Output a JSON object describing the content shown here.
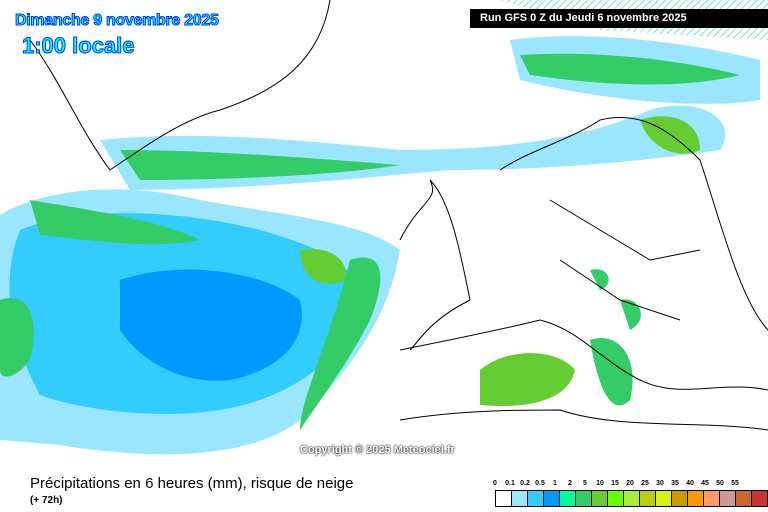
{
  "header": {
    "date": "Dimanche 9 novembre 2025",
    "time": "1:00 locale",
    "run": "Run GFS 0 Z du Jeudi 6 novembre 2025"
  },
  "copyright": "Copyright © 2025 Meteociel.fr",
  "footer": {
    "title": "Précipitations en 6 heures (mm), risque de neige",
    "subtitle": "(+ 72h)"
  },
  "legend": {
    "labels": [
      "0",
      "0.1",
      "0.2",
      "0.5",
      "1",
      "2",
      "5",
      "10",
      "15",
      "20",
      "25",
      "30",
      "35",
      "40",
      "45",
      "50",
      "55"
    ],
    "colors": [
      "#ffffff",
      "#9be6ff",
      "#33ccff",
      "#0099ff",
      "#00ff99",
      "#33cc66",
      "#66cc33",
      "#66ff00",
      "#a6f03a",
      "#bbcc11",
      "#d9f015",
      "#cc9900",
      "#ff9900",
      "#ff9966",
      "#cc9999",
      "#cc6633",
      "#cc3333"
    ]
  }
}
